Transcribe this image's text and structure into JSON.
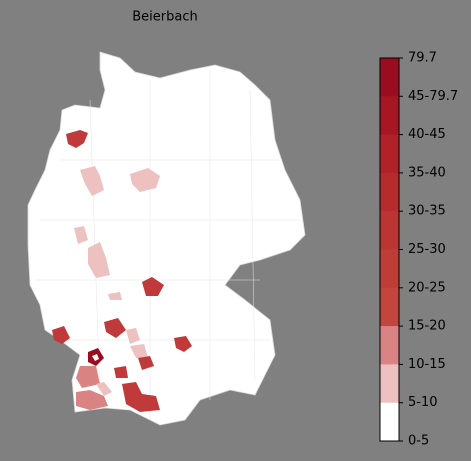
{
  "title": "Beierbach",
  "legend": {
    "labels": [
      "79.7",
      "45-79.7",
      "40-45",
      "35-40",
      "30-35",
      "25-30",
      "20-25",
      "15-20",
      "10-15",
      "5-10",
      "0-5"
    ],
    "colors": [
      "#9a0c20",
      "#a61623",
      "#b02227",
      "#b62c2c",
      "#bb3532",
      "#bf3d37",
      "#c3463e",
      "#d98483",
      "#ecc1c0",
      "#ffffff"
    ]
  }
}
